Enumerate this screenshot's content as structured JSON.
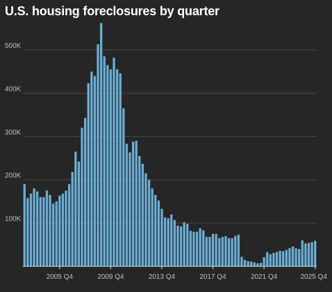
{
  "title": "U.S. housing foreclosures by quarter",
  "colors": {
    "background": "#262626",
    "bar": "#6aaed6",
    "grid": "#4a4a4a",
    "axis": "#dddddd",
    "text": "#bfbfbf"
  },
  "chart_data": {
    "type": "bar",
    "title": "U.S. housing foreclosures by quarter",
    "xlabel": "",
    "ylabel": "",
    "ylim": [
      0,
      580000
    ],
    "grid": true,
    "legend": "none",
    "y_ticks": [
      {
        "value": 100000,
        "label": "100K"
      },
      {
        "value": 200000,
        "label": "200K"
      },
      {
        "value": 300000,
        "label": "300K"
      },
      {
        "value": 400000,
        "label": "400K"
      },
      {
        "value": 500000,
        "label": "500K"
      }
    ],
    "x_ticks": [
      {
        "category": "2005 Q4",
        "label": "2005 Q4"
      },
      {
        "category": "2009 Q4",
        "label": "2009 Q4"
      },
      {
        "category": "2013 Q4",
        "label": "2013 Q4"
      },
      {
        "category": "2017 Q4",
        "label": "2017 Q4"
      },
      {
        "category": "2021 Q4",
        "label": "2021 Q4"
      },
      {
        "category": "2025 Q4",
        "label": "2025 Q4"
      }
    ],
    "categories": [
      "2003 Q1",
      "2003 Q2",
      "2003 Q3",
      "2003 Q4",
      "2004 Q1",
      "2004 Q2",
      "2004 Q3",
      "2004 Q4",
      "2005 Q1",
      "2005 Q2",
      "2005 Q3",
      "2005 Q4",
      "2006 Q1",
      "2006 Q2",
      "2006 Q3",
      "2006 Q4",
      "2007 Q1",
      "2007 Q2",
      "2007 Q3",
      "2007 Q4",
      "2008 Q1",
      "2008 Q2",
      "2008 Q3",
      "2008 Q4",
      "2009 Q1",
      "2009 Q2",
      "2009 Q3",
      "2009 Q4",
      "2010 Q1",
      "2010 Q2",
      "2010 Q3",
      "2010 Q4",
      "2011 Q1",
      "2011 Q2",
      "2011 Q3",
      "2011 Q4",
      "2012 Q1",
      "2012 Q2",
      "2012 Q3",
      "2012 Q4",
      "2013 Q1",
      "2013 Q2",
      "2013 Q3",
      "2013 Q4",
      "2014 Q1",
      "2014 Q2",
      "2014 Q3",
      "2014 Q4",
      "2015 Q1",
      "2015 Q2",
      "2015 Q3",
      "2015 Q4",
      "2016 Q1",
      "2016 Q2",
      "2016 Q3",
      "2016 Q4",
      "2017 Q1",
      "2017 Q2",
      "2017 Q3",
      "2017 Q4",
      "2018 Q1",
      "2018 Q2",
      "2018 Q3",
      "2018 Q4",
      "2019 Q1",
      "2019 Q2",
      "2019 Q3",
      "2019 Q4",
      "2020 Q1",
      "2020 Q2",
      "2020 Q3",
      "2020 Q4",
      "2021 Q1",
      "2021 Q2",
      "2021 Q3",
      "2021 Q4",
      "2022 Q1",
      "2022 Q2",
      "2022 Q3",
      "2022 Q4",
      "2023 Q1",
      "2023 Q2",
      "2023 Q3",
      "2023 Q4",
      "2024 Q1",
      "2024 Q2",
      "2024 Q3",
      "2024 Q4",
      "2025 Q1",
      "2025 Q2",
      "2025 Q3",
      "2025 Q4"
    ],
    "values": [
      190000,
      158000,
      168000,
      180000,
      173000,
      160000,
      160000,
      175000,
      165000,
      145000,
      150000,
      163000,
      168000,
      175000,
      190000,
      218000,
      265000,
      242000,
      320000,
      343000,
      423000,
      450000,
      440000,
      513000,
      562000,
      485000,
      465000,
      455000,
      482000,
      455000,
      446000,
      365000,
      283000,
      263000,
      288000,
      290000,
      255000,
      237000,
      215000,
      200000,
      180000,
      165000,
      152000,
      133000,
      113000,
      111000,
      120000,
      107000,
      94000,
      92000,
      102000,
      98000,
      82000,
      80000,
      80000,
      88000,
      83000,
      68000,
      68000,
      75000,
      75000,
      65000,
      68000,
      70000,
      65000,
      65000,
      70000,
      73000,
      22000,
      15000,
      12000,
      11000,
      9000,
      7000,
      8000,
      21000,
      33000,
      28000,
      31000,
      33000,
      36000,
      35000,
      38000,
      42000,
      46000,
      42000,
      40000,
      60000,
      53000,
      54000,
      56000,
      59000
    ]
  }
}
